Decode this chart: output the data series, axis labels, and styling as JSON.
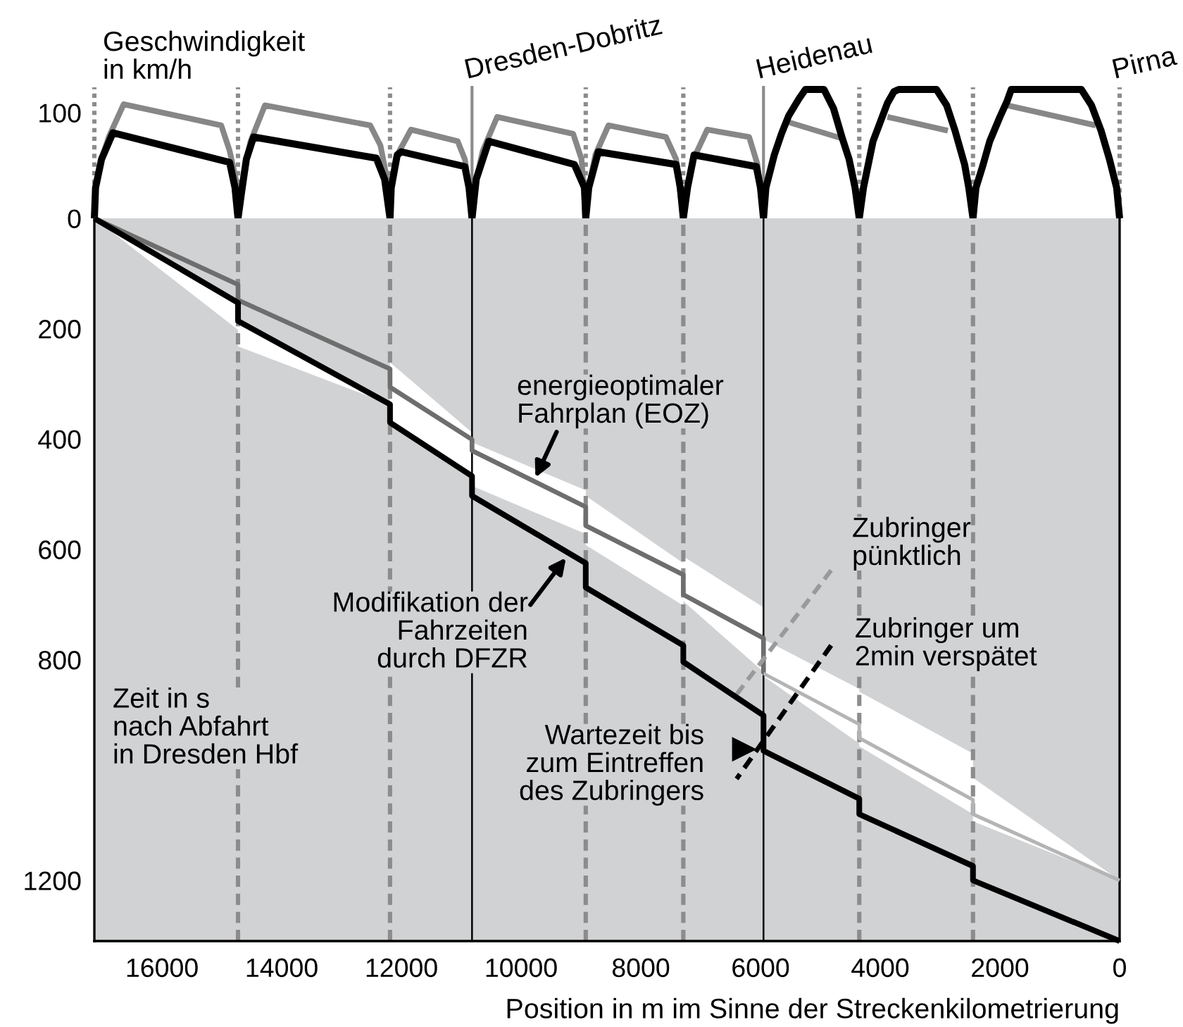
{
  "chart_data": [
    {
      "type": "line",
      "ylabel": "Geschwindigkeit\nin km/h",
      "xlim": [
        17130,
        0
      ],
      "ylim": [
        0,
        124
      ],
      "yticks": [
        0,
        100
      ],
      "tick_labels": "y",
      "ref_lines": [
        {
          "axis": "x",
          "value": 17130,
          "line_style": "dotted",
          "color": "#8c8c8c"
        },
        {
          "axis": "x",
          "value": 14730,
          "line_style": "dotted",
          "color": "#8c8c8c"
        },
        {
          "axis": "x",
          "value": 12190,
          "line_style": "dotted",
          "color": "#8c8c8c"
        },
        {
          "axis": "x",
          "value": 10820,
          "label": "Dresden-Dobritz",
          "line_style": "solid",
          "color": "#8c8c8c"
        },
        {
          "axis": "x",
          "value": 8920,
          "line_style": "dotted",
          "color": "#8c8c8c"
        },
        {
          "axis": "x",
          "value": 7290,
          "line_style": "dotted",
          "color": "#8c8c8c"
        },
        {
          "axis": "x",
          "value": 5950,
          "label": "Heidenau",
          "line_style": "solid",
          "color": "#8c8c8c"
        },
        {
          "axis": "x",
          "value": 4350,
          "line_style": "dotted",
          "color": "#8c8c8c"
        },
        {
          "axis": "x",
          "value": 2450,
          "line_style": "dotted",
          "color": "#8c8c8c"
        },
        {
          "axis": "x",
          "value": 0,
          "label": "Pirna",
          "line_style": "dotted",
          "color": "#8c8c8c"
        }
      ],
      "series": [
        {
          "color": "#878787",
          "x": [
            17130,
            17110,
            17010,
            16890,
            16640,
            15010,
            14870,
            14750,
            14730,
            14660,
            14590,
            14520,
            14280,
            12520,
            12350,
            12240,
            12190,
            12170,
            12070,
            11840,
            11060,
            10940,
            10870,
            10820,
            10750,
            10640,
            10400,
            9130,
            8990,
            8920,
            8870,
            8760,
            8540,
            7580,
            7410,
            7290,
            7220,
            7130,
            6890,
            6190,
            6050,
            5950
          ],
          "values": [
            0,
            29,
            56,
            77,
            108,
            88,
            64,
            33,
            0,
            29,
            56,
            73,
            107,
            88,
            69,
            37,
            0,
            29,
            60,
            84,
            73,
            56,
            29,
            0,
            37,
            64,
            96,
            80,
            56,
            0,
            29,
            60,
            88,
            77,
            56,
            0,
            29,
            55,
            84,
            77,
            51,
            0
          ]
        },
        {
          "color": "#878787",
          "x": [
            5530,
            4660
          ],
          "values": [
            91,
            76
          ]
        },
        {
          "color": "#878787",
          "x": [
            3880,
            2870
          ],
          "values": [
            96,
            83
          ]
        },
        {
          "color": "#878787",
          "x": [
            1880,
            400
          ],
          "values": [
            107,
            88
          ]
        },
        {
          "color": "#000000",
          "x": [
            17130,
            17110,
            17010,
            16820,
            14870,
            14780,
            14730,
            14660,
            14590,
            14470,
            12420,
            12280,
            12190,
            12170,
            12070,
            12000,
            10940,
            10870,
            10820,
            10750,
            10540,
            9110,
            8940,
            8920,
            8870,
            8710,
            7410,
            7340,
            7290,
            7220,
            7110,
            6070,
            6000,
            5950,
            5910,
            5770,
            5650,
            5530,
            5360,
            5250,
            4940,
            4780,
            4640,
            4520,
            4420,
            4350,
            4280,
            4120,
            4000,
            3880,
            3770,
            3690,
            3060,
            2890,
            2750,
            2590,
            2520,
            2450,
            2400,
            2280,
            2170,
            2000,
            1880,
            1810,
            640,
            470,
            310,
            170,
            50,
            0
          ],
          "values": [
            0,
            29,
            56,
            81,
            53,
            29,
            0,
            29,
            56,
            77,
            57,
            37,
            0,
            29,
            60,
            63,
            49,
            29,
            0,
            37,
            73,
            51,
            29,
            0,
            29,
            63,
            51,
            29,
            0,
            29,
            60,
            49,
            29,
            0,
            29,
            60,
            80,
            97,
            113,
            122,
            122,
            104,
            77,
            56,
            29,
            0,
            29,
            73,
            91,
            109,
            120,
            122,
            122,
            107,
            83,
            51,
            29,
            0,
            29,
            51,
            73,
            96,
            111,
            122,
            122,
            107,
            83,
            56,
            29,
            0
          ]
        }
      ]
    },
    {
      "type": "line",
      "xlabel": "Position in m im Sinne der Streckenkilometrierung",
      "ylabel": "Zeit in s\nnach Abfahrt\nin Dresden Hbf",
      "xlim": [
        17130,
        0
      ],
      "xticks": [
        16000,
        14000,
        12000,
        10000,
        8000,
        6000,
        4000,
        2000,
        0
      ],
      "ylim": [
        1310,
        0
      ],
      "yticks": [
        200,
        400,
        600,
        800,
        1200
      ],
      "ref_lines": [
        {
          "axis": "x",
          "value": 14730,
          "line_style": "dashed",
          "color": "#8c8c8c"
        },
        {
          "axis": "x",
          "value": 12190,
          "line_style": "dashed",
          "color": "#8c8c8c"
        },
        {
          "axis": "x",
          "value": 10820,
          "line_style": "solid",
          "color": "#000000"
        },
        {
          "axis": "x",
          "value": 8920,
          "line_style": "dashed",
          "color": "#8c8c8c"
        },
        {
          "axis": "x",
          "value": 7290,
          "line_style": "dashed",
          "color": "#8c8c8c"
        },
        {
          "axis": "x",
          "value": 5950,
          "line_style": "solid",
          "color": "#000000"
        },
        {
          "axis": "x",
          "value": 4350,
          "line_style": "dashed",
          "color": "#8c8c8c"
        },
        {
          "axis": "x",
          "value": 2450,
          "line_style": "dashed",
          "color": "#8c8c8c"
        }
      ],
      "series": [
        {
          "color": "#6e6e6e",
          "x": [
            17130,
            14730,
            14730,
            12190,
            12190,
            10820,
            10820,
            8920,
            8920,
            7290,
            7290,
            5950,
            5950
          ],
          "values": [
            0,
            120,
            148,
            273,
            306,
            401,
            421,
            523,
            557,
            646,
            682,
            761,
            825
          ],
          "lower": [
            0,
            153,
            190,
            337,
            261,
            388,
            406,
            493,
            503,
            625,
            613,
            705,
            763
          ],
          "upper": [
            0,
            202,
            232,
            337,
            370,
            467,
            485,
            572,
            592,
            702,
            694,
            822,
            830
          ]
        },
        {
          "color": "#b4b4b4",
          "x": [
            5950,
            4350,
            4350,
            2450,
            2450,
            0
          ],
          "values": [
            825,
            917,
            942,
            1054,
            1080,
            1200
          ],
          "lower": [
            763,
            853,
            858,
            970,
            1014,
            1200
          ],
          "upper": [
            830,
            952,
            957,
            1080,
            1093,
            1200
          ]
        },
        {
          "color": "#9a9a9a",
          "line_style": "dashed",
          "x": [
            4820,
            6400
          ],
          "values": [
            638,
            863
          ]
        },
        {
          "color": "#000000",
          "line_style": "dashed",
          "x": [
            4820,
            6400
          ],
          "values": [
            774,
            1016
          ]
        },
        {
          "color": "#000000",
          "x": [
            17130,
            14730,
            14730,
            12190,
            12190,
            10820,
            10820,
            8920,
            8920,
            7290,
            7290,
            5950,
            5950,
            4350,
            4350,
            2450,
            2450,
            0
          ],
          "values": [
            0,
            153,
            186,
            337,
            370,
            467,
            503,
            625,
            669,
            774,
            804,
            901,
            965,
            1052,
            1080,
            1174,
            1200,
            1310
          ]
        }
      ],
      "annotations": [
        {
          "text": "energieoptimaler\nFahrplan (EOZ)",
          "x": 9760,
          "y": 470
        },
        {
          "text": "Modifikation der\nFahrzeiten\ndurch DFZR",
          "x": 9250,
          "y": 615
        },
        {
          "text": "Zubringer\npünktlich",
          "x": 4820,
          "y": 638
        },
        {
          "text": "Zubringer um\n2min verspätet",
          "x": 4820,
          "y": 774
        },
        {
          "text": "Wartezeit bis\nzum Eintreffen\ndes Zubringers",
          "x": 5950,
          "y": 965
        }
      ]
    }
  ]
}
